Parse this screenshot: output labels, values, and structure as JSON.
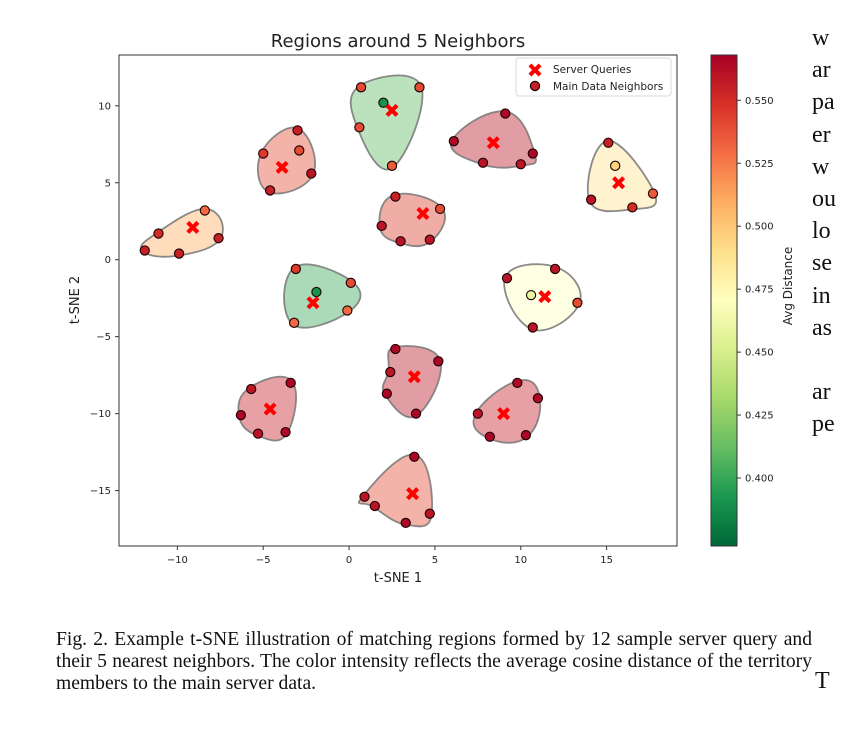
{
  "chart_data": {
    "type": "scatter",
    "title": "Regions around 5 Neighbors",
    "xlabel": "t-SNE 1",
    "ylabel": "t-SNE 2",
    "xlim": [
      -13.4,
      19.1
    ],
    "ylim": [
      -18.6,
      13.3
    ],
    "xticks": [
      -10,
      -5,
      0,
      5,
      10,
      15
    ],
    "xtick_labels": [
      "−10",
      "−5",
      "0",
      "5",
      "10",
      "15"
    ],
    "yticks": [
      10,
      5,
      0,
      -5,
      -10,
      -15
    ],
    "ytick_labels": [
      "10",
      "5",
      "0",
      "−5",
      "−10",
      "−15"
    ],
    "grid": false,
    "legend": {
      "placement": "top-right",
      "entries": [
        {
          "label": "Server Queries",
          "marker": "x-filled",
          "color": "#ff0000"
        },
        {
          "label": "Main Data Neighbors",
          "marker": "circle",
          "color": "#c62027"
        }
      ]
    },
    "colorbar": {
      "label": "Avg Distance",
      "colormap": "RdYlGn_r",
      "range": [
        0.373,
        0.568
      ],
      "ticks": [
        0.55,
        0.525,
        0.5,
        0.475,
        0.45,
        0.425,
        0.4
      ],
      "tick_labels": [
        "0.550",
        "0.525",
        "0.500",
        "0.475",
        "0.450",
        "0.425",
        "0.400"
      ]
    },
    "regions": [
      {
        "query": [
          2.5,
          9.7
        ],
        "avg_distance": 0.41,
        "neighbors": [
          [
            0.7,
            11.2,
            0.54
          ],
          [
            4.1,
            11.2,
            0.54
          ],
          [
            0.6,
            8.6,
            0.54
          ],
          [
            2.5,
            6.1,
            0.535
          ],
          [
            2.0,
            10.2,
            0.39
          ]
        ]
      },
      {
        "query": [
          -3.9,
          6.0
        ],
        "avg_distance": 0.54,
        "neighbors": [
          [
            -3.0,
            8.4,
            0.555
          ],
          [
            -5.0,
            6.9,
            0.545
          ],
          [
            -2.9,
            7.1,
            0.54
          ],
          [
            -2.2,
            5.6,
            0.56
          ],
          [
            -4.6,
            4.5,
            0.555
          ]
        ]
      },
      {
        "query": [
          -9.1,
          2.1
        ],
        "avg_distance": 0.51,
        "neighbors": [
          [
            -8.4,
            3.2,
            0.53
          ],
          [
            -11.1,
            1.7,
            0.55
          ],
          [
            -11.9,
            0.6,
            0.555
          ],
          [
            -9.9,
            0.4,
            0.555
          ],
          [
            -7.6,
            1.4,
            0.555
          ]
        ]
      },
      {
        "query": [
          8.4,
          7.6
        ],
        "avg_distance": 0.56,
        "neighbors": [
          [
            9.1,
            9.5,
            0.565
          ],
          [
            6.1,
            7.7,
            0.565
          ],
          [
            7.8,
            6.3,
            0.56
          ],
          [
            10.0,
            6.2,
            0.56
          ],
          [
            10.7,
            6.9,
            0.565
          ]
        ]
      },
      {
        "query": [
          4.3,
          3.0
        ],
        "avg_distance": 0.545,
        "neighbors": [
          [
            2.7,
            4.1,
            0.555
          ],
          [
            5.3,
            3.3,
            0.54
          ],
          [
            1.9,
            2.2,
            0.56
          ],
          [
            3.0,
            1.2,
            0.56
          ],
          [
            4.7,
            1.3,
            0.56
          ]
        ]
      },
      {
        "query": [
          15.7,
          5.0
        ],
        "avg_distance": 0.49,
        "neighbors": [
          [
            15.1,
            7.6,
            0.555
          ],
          [
            15.5,
            6.1,
            0.495
          ],
          [
            14.1,
            3.9,
            0.56
          ],
          [
            16.5,
            3.4,
            0.55
          ],
          [
            17.7,
            4.3,
            0.535
          ]
        ]
      },
      {
        "query": [
          -2.1,
          -2.8
        ],
        "avg_distance": 0.4,
        "neighbors": [
          [
            -3.1,
            -0.6,
            0.545
          ],
          [
            0.1,
            -1.5,
            0.54
          ],
          [
            -1.9,
            -2.1,
            0.39
          ],
          [
            -0.1,
            -3.3,
            0.53
          ],
          [
            -3.2,
            -4.1,
            0.53
          ]
        ]
      },
      {
        "query": [
          11.4,
          -2.4
        ],
        "avg_distance": 0.47,
        "neighbors": [
          [
            9.2,
            -1.2,
            0.56
          ],
          [
            12.0,
            -0.6,
            0.56
          ],
          [
            10.6,
            -2.3,
            0.46
          ],
          [
            13.3,
            -2.8,
            0.54
          ],
          [
            10.7,
            -4.4,
            0.56
          ]
        ]
      },
      {
        "query": [
          3.8,
          -7.6
        ],
        "avg_distance": 0.56,
        "neighbors": [
          [
            2.7,
            -5.8,
            0.565
          ],
          [
            5.2,
            -6.6,
            0.565
          ],
          [
            2.4,
            -7.3,
            0.56
          ],
          [
            2.2,
            -8.7,
            0.565
          ],
          [
            3.9,
            -10.0,
            0.565
          ]
        ]
      },
      {
        "query": [
          -4.6,
          -9.7
        ],
        "avg_distance": 0.555,
        "neighbors": [
          [
            -3.4,
            -8.0,
            0.565
          ],
          [
            -5.7,
            -8.4,
            0.56
          ],
          [
            -6.3,
            -10.1,
            0.565
          ],
          [
            -5.3,
            -11.3,
            0.56
          ],
          [
            -3.7,
            -11.2,
            0.565
          ]
        ]
      },
      {
        "query": [
          9.0,
          -10.0
        ],
        "avg_distance": 0.555,
        "neighbors": [
          [
            9.8,
            -8.0,
            0.565
          ],
          [
            11.0,
            -9.0,
            0.565
          ],
          [
            7.5,
            -10.0,
            0.56
          ],
          [
            8.2,
            -11.5,
            0.565
          ],
          [
            10.3,
            -11.4,
            0.565
          ]
        ]
      },
      {
        "query": [
          3.7,
          -15.2
        ],
        "avg_distance": 0.54,
        "neighbors": [
          [
            3.8,
            -12.8,
            0.565
          ],
          [
            0.9,
            -15.4,
            0.56
          ],
          [
            1.5,
            -16.0,
            0.56
          ],
          [
            4.7,
            -16.5,
            0.56
          ],
          [
            3.3,
            -17.1,
            0.565
          ]
        ]
      }
    ]
  },
  "caption": {
    "text": "Fig. 2.  Example t-SNE illustration of matching regions formed by 12 sample server query and their 5 nearest neighbors. The color intensity reflects the average cosine distance of the territory members to the main server data."
  },
  "side_text": {
    "lines": [
      "w",
      "ar",
      "pa",
      "er",
      "w",
      "ou",
      "lo",
      "se",
      "in",
      "as",
      "",
      "ar",
      "pe"
    ],
    "bottom_fragment": "T"
  }
}
